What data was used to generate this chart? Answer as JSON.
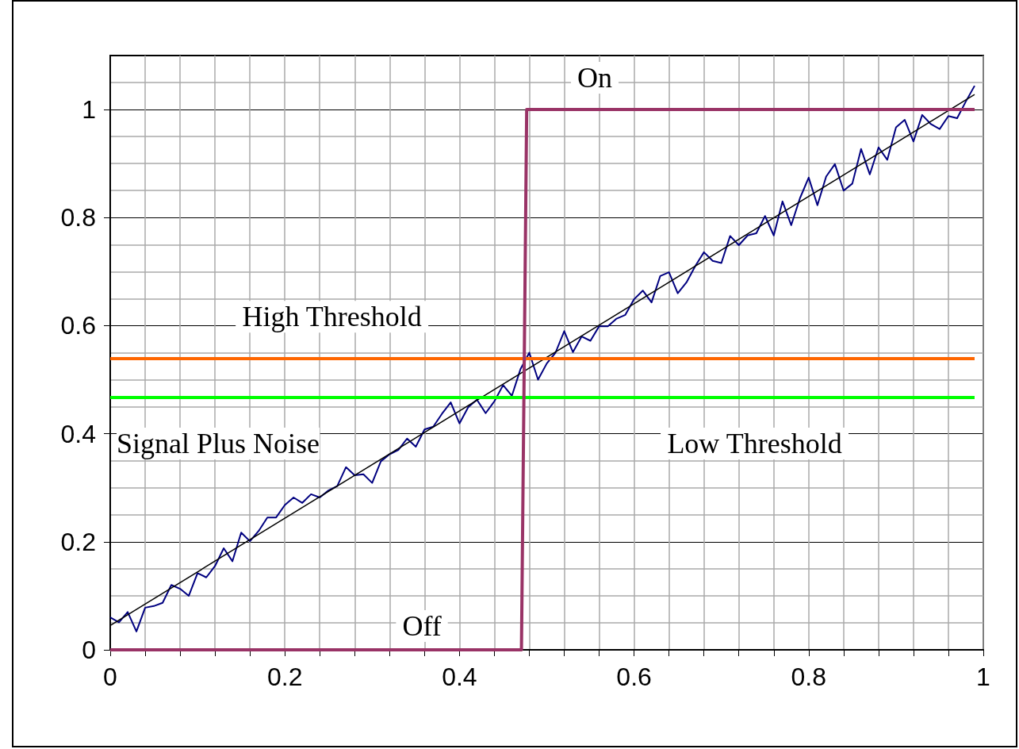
{
  "chart_data": {
    "type": "line",
    "xlim": [
      0,
      1
    ],
    "ylim": [
      0,
      1.1
    ],
    "xticks": [
      0,
      0.2,
      0.4,
      0.6,
      0.8,
      1
    ],
    "yticks": [
      0,
      0.2,
      0.4,
      0.6,
      0.8,
      1
    ],
    "grid": true,
    "marker": "none",
    "series": [
      {
        "name": "Signal Plus Noise",
        "color": "#000080",
        "x": [
          0,
          0.01,
          0.02,
          0.03,
          0.04,
          0.05,
          0.06,
          0.07,
          0.08,
          0.09,
          0.1,
          0.11,
          0.12,
          0.13,
          0.14,
          0.15,
          0.16,
          0.17,
          0.18,
          0.19,
          0.2,
          0.21,
          0.22,
          0.23,
          0.24,
          0.25,
          0.26,
          0.27,
          0.28,
          0.29,
          0.3,
          0.31,
          0.32,
          0.33,
          0.34,
          0.35,
          0.36,
          0.37,
          0.38,
          0.39,
          0.4,
          0.41,
          0.42,
          0.43,
          0.44,
          0.45,
          0.46,
          0.47,
          0.48,
          0.49,
          0.5,
          0.51,
          0.52,
          0.53,
          0.54,
          0.55,
          0.56,
          0.57,
          0.58,
          0.59,
          0.6,
          0.61,
          0.62,
          0.63,
          0.64,
          0.65,
          0.66,
          0.67,
          0.68,
          0.69,
          0.7,
          0.71,
          0.72,
          0.73,
          0.74,
          0.75,
          0.76,
          0.77,
          0.78,
          0.79,
          0.8,
          0.81,
          0.82,
          0.83,
          0.84,
          0.85,
          0.86,
          0.87,
          0.88,
          0.89,
          0.9,
          0.91,
          0.92,
          0.93,
          0.94,
          0.95,
          0.96,
          0.97,
          0.98,
          0.99
        ],
        "values": [
          0.06,
          0.051,
          0.07,
          0.034,
          0.078,
          0.081,
          0.087,
          0.12,
          0.113,
          0.1,
          0.142,
          0.134,
          0.155,
          0.188,
          0.164,
          0.217,
          0.201,
          0.22,
          0.245,
          0.245,
          0.268,
          0.282,
          0.272,
          0.288,
          0.282,
          0.295,
          0.303,
          0.338,
          0.323,
          0.325,
          0.309,
          0.349,
          0.362,
          0.37,
          0.391,
          0.376,
          0.408,
          0.413,
          0.437,
          0.458,
          0.419,
          0.449,
          0.463,
          0.438,
          0.46,
          0.49,
          0.47,
          0.52,
          0.55,
          0.5,
          0.53,
          0.55,
          0.59,
          0.551,
          0.58,
          0.572,
          0.599,
          0.599,
          0.613,
          0.62,
          0.649,
          0.665,
          0.643,
          0.692,
          0.699,
          0.66,
          0.68,
          0.71,
          0.736,
          0.72,
          0.716,
          0.766,
          0.749,
          0.767,
          0.771,
          0.803,
          0.767,
          0.83,
          0.786,
          0.836,
          0.874,
          0.823,
          0.876,
          0.899,
          0.85,
          0.863,
          0.927,
          0.88,
          0.93,
          0.907,
          0.967,
          0.981,
          0.941,
          0.99,
          0.973,
          0.964,
          0.988,
          0.984,
          1.015,
          1.044
        ]
      },
      {
        "color": "#000000",
        "x": [
          0,
          0.99
        ],
        "values": [
          0.045,
          1.028
        ]
      },
      {
        "color": "#993366",
        "x": [
          0,
          0.471,
          0.477,
          0.99
        ],
        "values": [
          0,
          0,
          1,
          1
        ]
      }
    ],
    "ref_lines": [
      {
        "axis": "y",
        "value": 0.54,
        "color": "#ff6600"
      },
      {
        "axis": "y",
        "value": 0.467,
        "color": "#00ff00"
      }
    ],
    "annotations": [
      {
        "text": "On",
        "x": 0.555,
        "y": 1
      },
      {
        "text": "Off",
        "x": 0.357,
        "y": 0
      },
      {
        "text": "High Threshold",
        "x": 0.254,
        "y": 0.54
      },
      {
        "text": "Low Threshold",
        "x": 0.738,
        "y": 0.467
      }
    ]
  }
}
